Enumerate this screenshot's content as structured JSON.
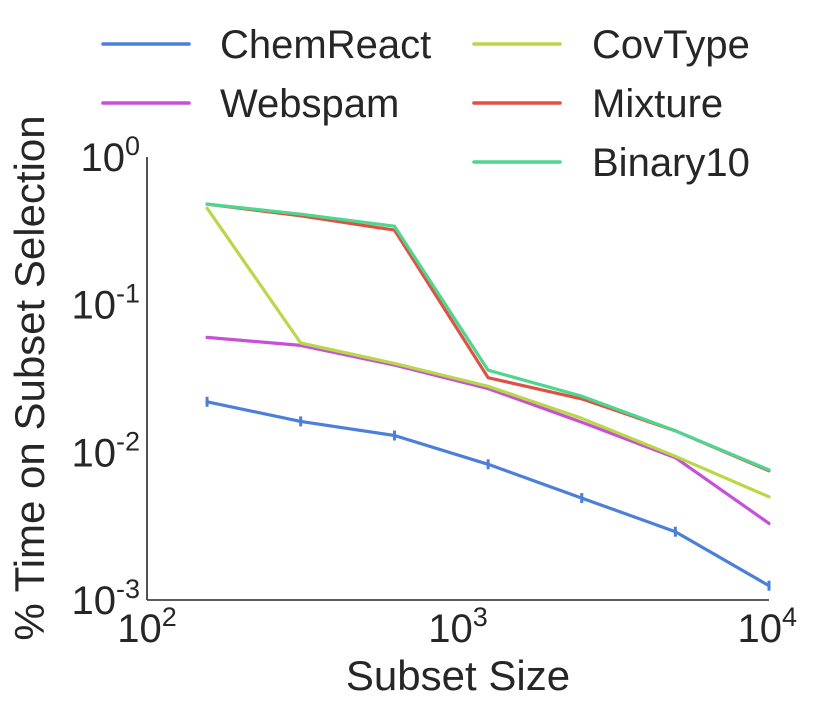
{
  "chart_data": {
    "type": "line",
    "title": "",
    "xlabel": "Subset Size",
    "ylabel": "% Time on Subset Selection",
    "xscale": "log",
    "yscale": "log",
    "xlim": [
      100,
      10000
    ],
    "ylim": [
      0.001,
      1
    ],
    "grid": false,
    "legend_position": "top",
    "x_ticks": [
      {
        "value": 100,
        "base": "10",
        "exp": "2"
      },
      {
        "value": 1000,
        "base": "10",
        "exp": "3"
      },
      {
        "value": 10000,
        "base": "10",
        "exp": "4"
      }
    ],
    "y_ticks": [
      {
        "value": 0.001,
        "base": "10",
        "exp": "-3"
      },
      {
        "value": 0.01,
        "base": "10",
        "exp": "-2"
      },
      {
        "value": 0.1,
        "base": "10",
        "exp": "-1"
      },
      {
        "value": 1,
        "base": "10",
        "exp": "0"
      }
    ],
    "x": [
      156,
      312,
      625,
      1250,
      2500,
      5000,
      10000
    ],
    "series": [
      {
        "name": "ChemReact",
        "color": "#4c7fd9",
        "error_bars": true,
        "values": [
          0.022,
          0.0162,
          0.013,
          0.0083,
          0.0049,
          0.0029,
          0.00125
        ]
      },
      {
        "name": "Webspam",
        "color": "#c850d8",
        "values": [
          0.06,
          0.053,
          0.039,
          0.027,
          0.016,
          0.0092,
          0.0033
        ]
      },
      {
        "name": "CovType",
        "color": "#b8d848",
        "values": [
          0.45,
          0.055,
          0.04,
          0.028,
          0.017,
          0.0094,
          0.005
        ]
      },
      {
        "name": "Mixture",
        "color": "#dd5244",
        "values": [
          0.48,
          0.4,
          0.32,
          0.032,
          0.023,
          0.014,
          0.0075
        ]
      },
      {
        "name": "Binary10",
        "color": "#4fd68e",
        "values": [
          0.48,
          0.41,
          0.34,
          0.036,
          0.024,
          0.014,
          0.0076
        ]
      }
    ]
  }
}
